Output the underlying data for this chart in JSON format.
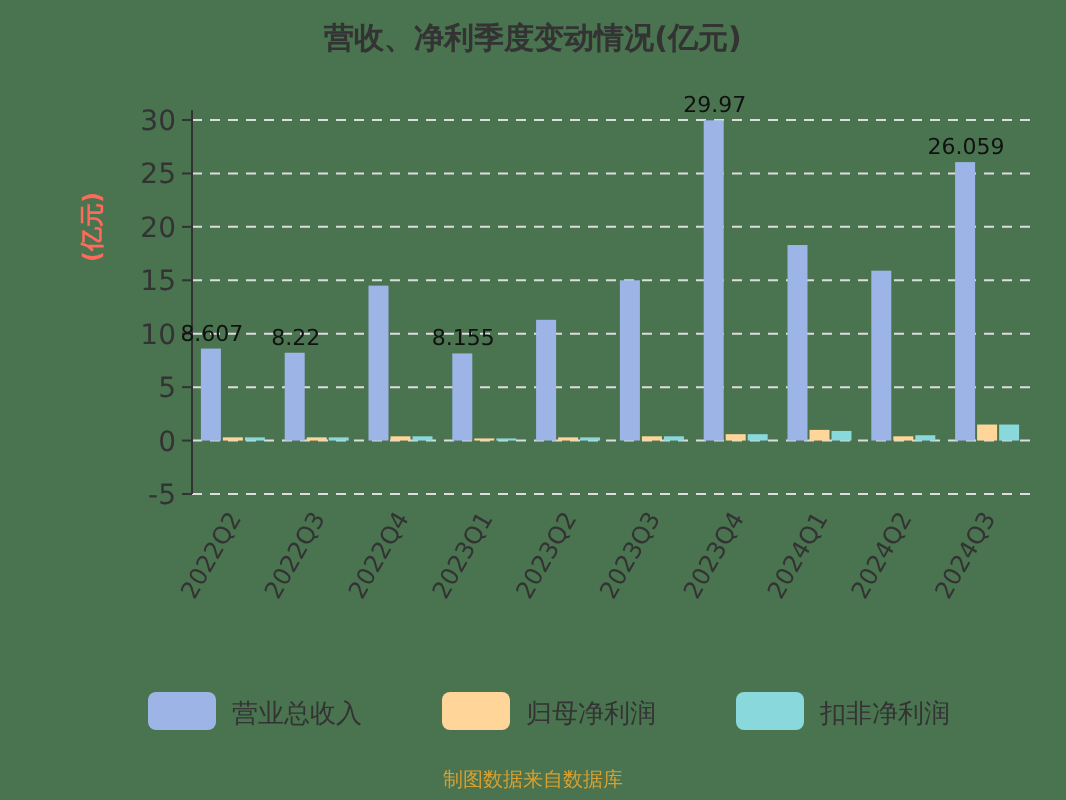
{
  "chart_data": {
    "type": "bar",
    "title": "营收、净利季度变动情况(亿元)",
    "ylabel": "(亿元)",
    "categories": [
      "2022Q2",
      "2022Q3",
      "2022Q4",
      "2023Q1",
      "2023Q2",
      "2023Q3",
      "2023Q4",
      "2024Q1",
      "2024Q2",
      "2024Q3"
    ],
    "series": [
      {
        "name": "营业总收入",
        "color": "#9db5e6",
        "values": [
          8.607,
          8.22,
          14.5,
          8.155,
          11.3,
          15,
          29.97,
          18.3,
          15.9,
          26.059
        ],
        "value_labels": [
          "8.607",
          "8.22",
          null,
          "8.155",
          null,
          null,
          "29.97",
          null,
          null,
          "26.059"
        ]
      },
      {
        "name": "归母净利润",
        "color": "#ffd59a",
        "values": [
          0.3,
          0.3,
          0.4,
          0.2,
          0.3,
          0.4,
          0.6,
          1,
          0.4,
          1.5
        ]
      },
      {
        "name": "扣非净利润",
        "color": "#88d8dc",
        "values": [
          0.3,
          0.3,
          0.4,
          0.2,
          0.3,
          0.4,
          0.6,
          0.9,
          0.5,
          1.5
        ]
      }
    ],
    "ylim": [
      -5,
      30
    ],
    "yticks": [
      -5,
      0,
      5,
      10,
      15,
      20,
      25,
      30
    ],
    "grid": "y",
    "legend": "bottom",
    "annotations": [
      "制图数据来自数据库"
    ]
  }
}
